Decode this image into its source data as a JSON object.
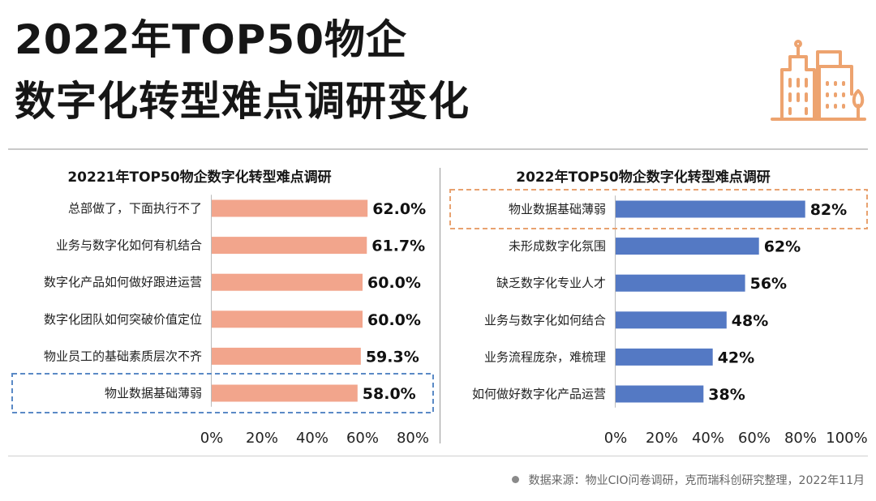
{
  "header": {
    "title_line1": "2022年TOP50物企",
    "title_line2": "数字化转型难点调研变化"
  },
  "source": "数据来源：物业CIO问卷调研，克而瑞科创研究整理，2022年11月",
  "icons": {
    "logo": "city-buildings-icon",
    "source_dot": "bullet-dot-icon"
  },
  "colors": {
    "left_bar": "#f2a58c",
    "right_bar": "#5479c4",
    "left_highlight_border": "#5b8ac6",
    "right_highlight_border": "#e8a270",
    "logo": "#eda36f"
  },
  "chart_data": [
    {
      "type": "bar",
      "orientation": "horizontal",
      "title": "20221年TOP50物企数字化转型难点调研",
      "categories": [
        "总部做了，下面执行不了",
        "业务与数字化如何有机结合",
        "数字化产品如何做好跟进运营",
        "数字化团队如何突破价值定位",
        "物业员工的基础素质层次不齐",
        "物业数据基础薄弱"
      ],
      "values": [
        62.0,
        61.7,
        60.0,
        60.0,
        59.3,
        58.0
      ],
      "value_labels": [
        "62.0%",
        "61.7%",
        "60.0%",
        "60.0%",
        "59.3%",
        "58.0%"
      ],
      "xlim": [
        0,
        80
      ],
      "xticks": [
        "0%",
        "20%",
        "40%",
        "60%",
        "80%"
      ],
      "highlighted_category": "物业数据基础薄弱",
      "grid": false
    },
    {
      "type": "bar",
      "orientation": "horizontal",
      "title": "2022年TOP50物企数字化转型难点调研",
      "categories": [
        "物业数据基础薄弱",
        "未形成数字化氛围",
        "缺乏数字化专业人才",
        "业务与数字化如何结合",
        "业务流程庞杂，难梳理",
        "如何做好数字化产品运营"
      ],
      "values": [
        82,
        62,
        56,
        48,
        42,
        38
      ],
      "value_labels": [
        "82%",
        "62%",
        "56%",
        "48%",
        "42%",
        "38%"
      ],
      "xlim": [
        0,
        100
      ],
      "xticks": [
        "0%",
        "20%",
        "40%",
        "60%",
        "80%",
        "100%"
      ],
      "highlighted_category": "物业数据基础薄弱",
      "grid": false
    }
  ]
}
